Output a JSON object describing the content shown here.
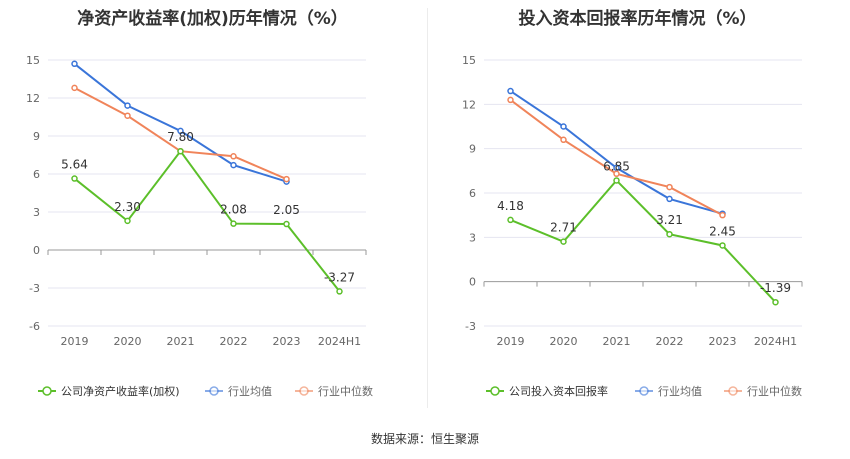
{
  "source_text": "数据来源：恒生聚源",
  "colors": {
    "company": "#5cbf2a",
    "avg": "#3a75d9",
    "median": "#f0845a",
    "grid": "#e5e5f0",
    "axis": "#999999",
    "text": "#333333"
  },
  "chart_data": [
    {
      "type": "line",
      "title": "净资产收益率(加权)历年情况（%）",
      "categories": [
        "2019",
        "2020",
        "2021",
        "2022",
        "2023",
        "2024H1"
      ],
      "yticks": [
        15,
        12,
        9,
        6,
        3,
        0,
        -3,
        -6
      ],
      "ylim": [
        -6,
        15
      ],
      "legend_position": "bottom",
      "series": [
        {
          "name": "公司净资产收益率(加权)",
          "key": "company",
          "values": [
            5.64,
            2.3,
            7.8,
            2.08,
            2.05,
            -3.27
          ],
          "labels": [
            "5.64",
            "2.30",
            "7.80",
            "2.08",
            "2.05",
            "-3.27"
          ]
        },
        {
          "name": "行业均值",
          "key": "avg",
          "values": [
            14.7,
            11.4,
            9.4,
            6.7,
            5.4,
            null
          ]
        },
        {
          "name": "行业中位数",
          "key": "median",
          "values": [
            12.8,
            10.6,
            7.8,
            7.4,
            5.6,
            null
          ]
        }
      ]
    },
    {
      "type": "line",
      "title": "投入资本回报率历年情况（%）",
      "categories": [
        "2019",
        "2020",
        "2021",
        "2022",
        "2023",
        "2024H1"
      ],
      "yticks": [
        15,
        12,
        9,
        6,
        3,
        0,
        -3
      ],
      "ylim": [
        -3,
        15
      ],
      "legend_position": "bottom",
      "series": [
        {
          "name": "公司投入资本回报率",
          "key": "company",
          "values": [
            4.18,
            2.71,
            6.85,
            3.21,
            2.45,
            -1.39
          ],
          "labels": [
            "4.18",
            "2.71",
            "6.85",
            "3.21",
            "2.45",
            "-1.39"
          ]
        },
        {
          "name": "行业均值",
          "key": "avg",
          "values": [
            12.9,
            10.5,
            7.7,
            5.6,
            4.6,
            null
          ]
        },
        {
          "name": "行业中位数",
          "key": "median",
          "values": [
            12.3,
            9.6,
            7.3,
            6.4,
            4.5,
            null
          ]
        }
      ]
    }
  ]
}
